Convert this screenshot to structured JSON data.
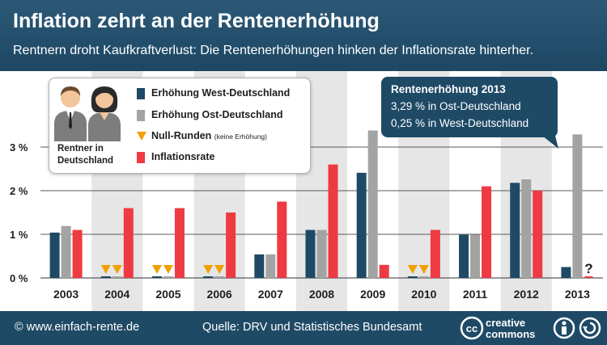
{
  "header": {
    "title": "Inflation zehrt an der Rentenerhöhung",
    "subtitle": "Rentnern droht Kaufkraftverlust: Die Rentenerhöhungen hinken der Inflationsrate hinterher."
  },
  "legend": {
    "persons_label": "Rentner in Deutschland",
    "items": [
      {
        "label": "Erhöhung West-Deutschland",
        "color": "#1f4a66"
      },
      {
        "label": "Erhöhung Ost-Deutschland",
        "color": "#a3a3a3"
      },
      {
        "label": "Null-Runden",
        "note": "(keine Erhöhung)",
        "color": "#f0a000"
      },
      {
        "label": "Inflationsrate",
        "color": "#ee3a42"
      }
    ]
  },
  "callout": {
    "title": "Rentenerhöhung 2013",
    "line1": "3,29 % in Ost-Deutschland",
    "line2": "0,25 % in West-Deutschland"
  },
  "footer": {
    "source_site": "© www.einfach-rente.de",
    "quelle": "Quelle: DRV und Statistisches Bundesamt",
    "license": "creative commons"
  },
  "chart_data": {
    "type": "bar",
    "title": "Inflation zehrt an der Rentenerhöhung",
    "xlabel": "",
    "ylabel": "",
    "ylim": [
      0,
      3.8
    ],
    "yticks": [
      0,
      1,
      2,
      3
    ],
    "ytick_labels": [
      "0 %",
      "1 %",
      "2 %",
      "3 %"
    ],
    "grid": true,
    "categories": [
      "2003",
      "2004",
      "2005",
      "2006",
      "2007",
      "2008",
      "2009",
      "2010",
      "2011",
      "2012",
      "2013"
    ],
    "series": [
      {
        "name": "Erhöhung West-Deutschland",
        "color": "#1f4a66",
        "values": [
          1.04,
          0,
          0,
          0,
          0.54,
          1.1,
          2.41,
          0,
          0.99,
          2.18,
          0.25
        ]
      },
      {
        "name": "Erhöhung Ost-Deutschland",
        "color": "#a3a3a3",
        "values": [
          1.19,
          0,
          0,
          0,
          0.54,
          1.1,
          3.38,
          0,
          0.99,
          2.26,
          3.29
        ]
      },
      {
        "name": "Inflationsrate",
        "color": "#ee3a42",
        "values": [
          1.1,
          1.6,
          1.6,
          1.5,
          1.75,
          2.6,
          0.3,
          1.1,
          2.1,
          2.0,
          null
        ]
      }
    ],
    "null_rounds": [
      "2004",
      "2005",
      "2006",
      "2010"
    ],
    "unknown_marker": "?",
    "unknown_category": "2013"
  }
}
